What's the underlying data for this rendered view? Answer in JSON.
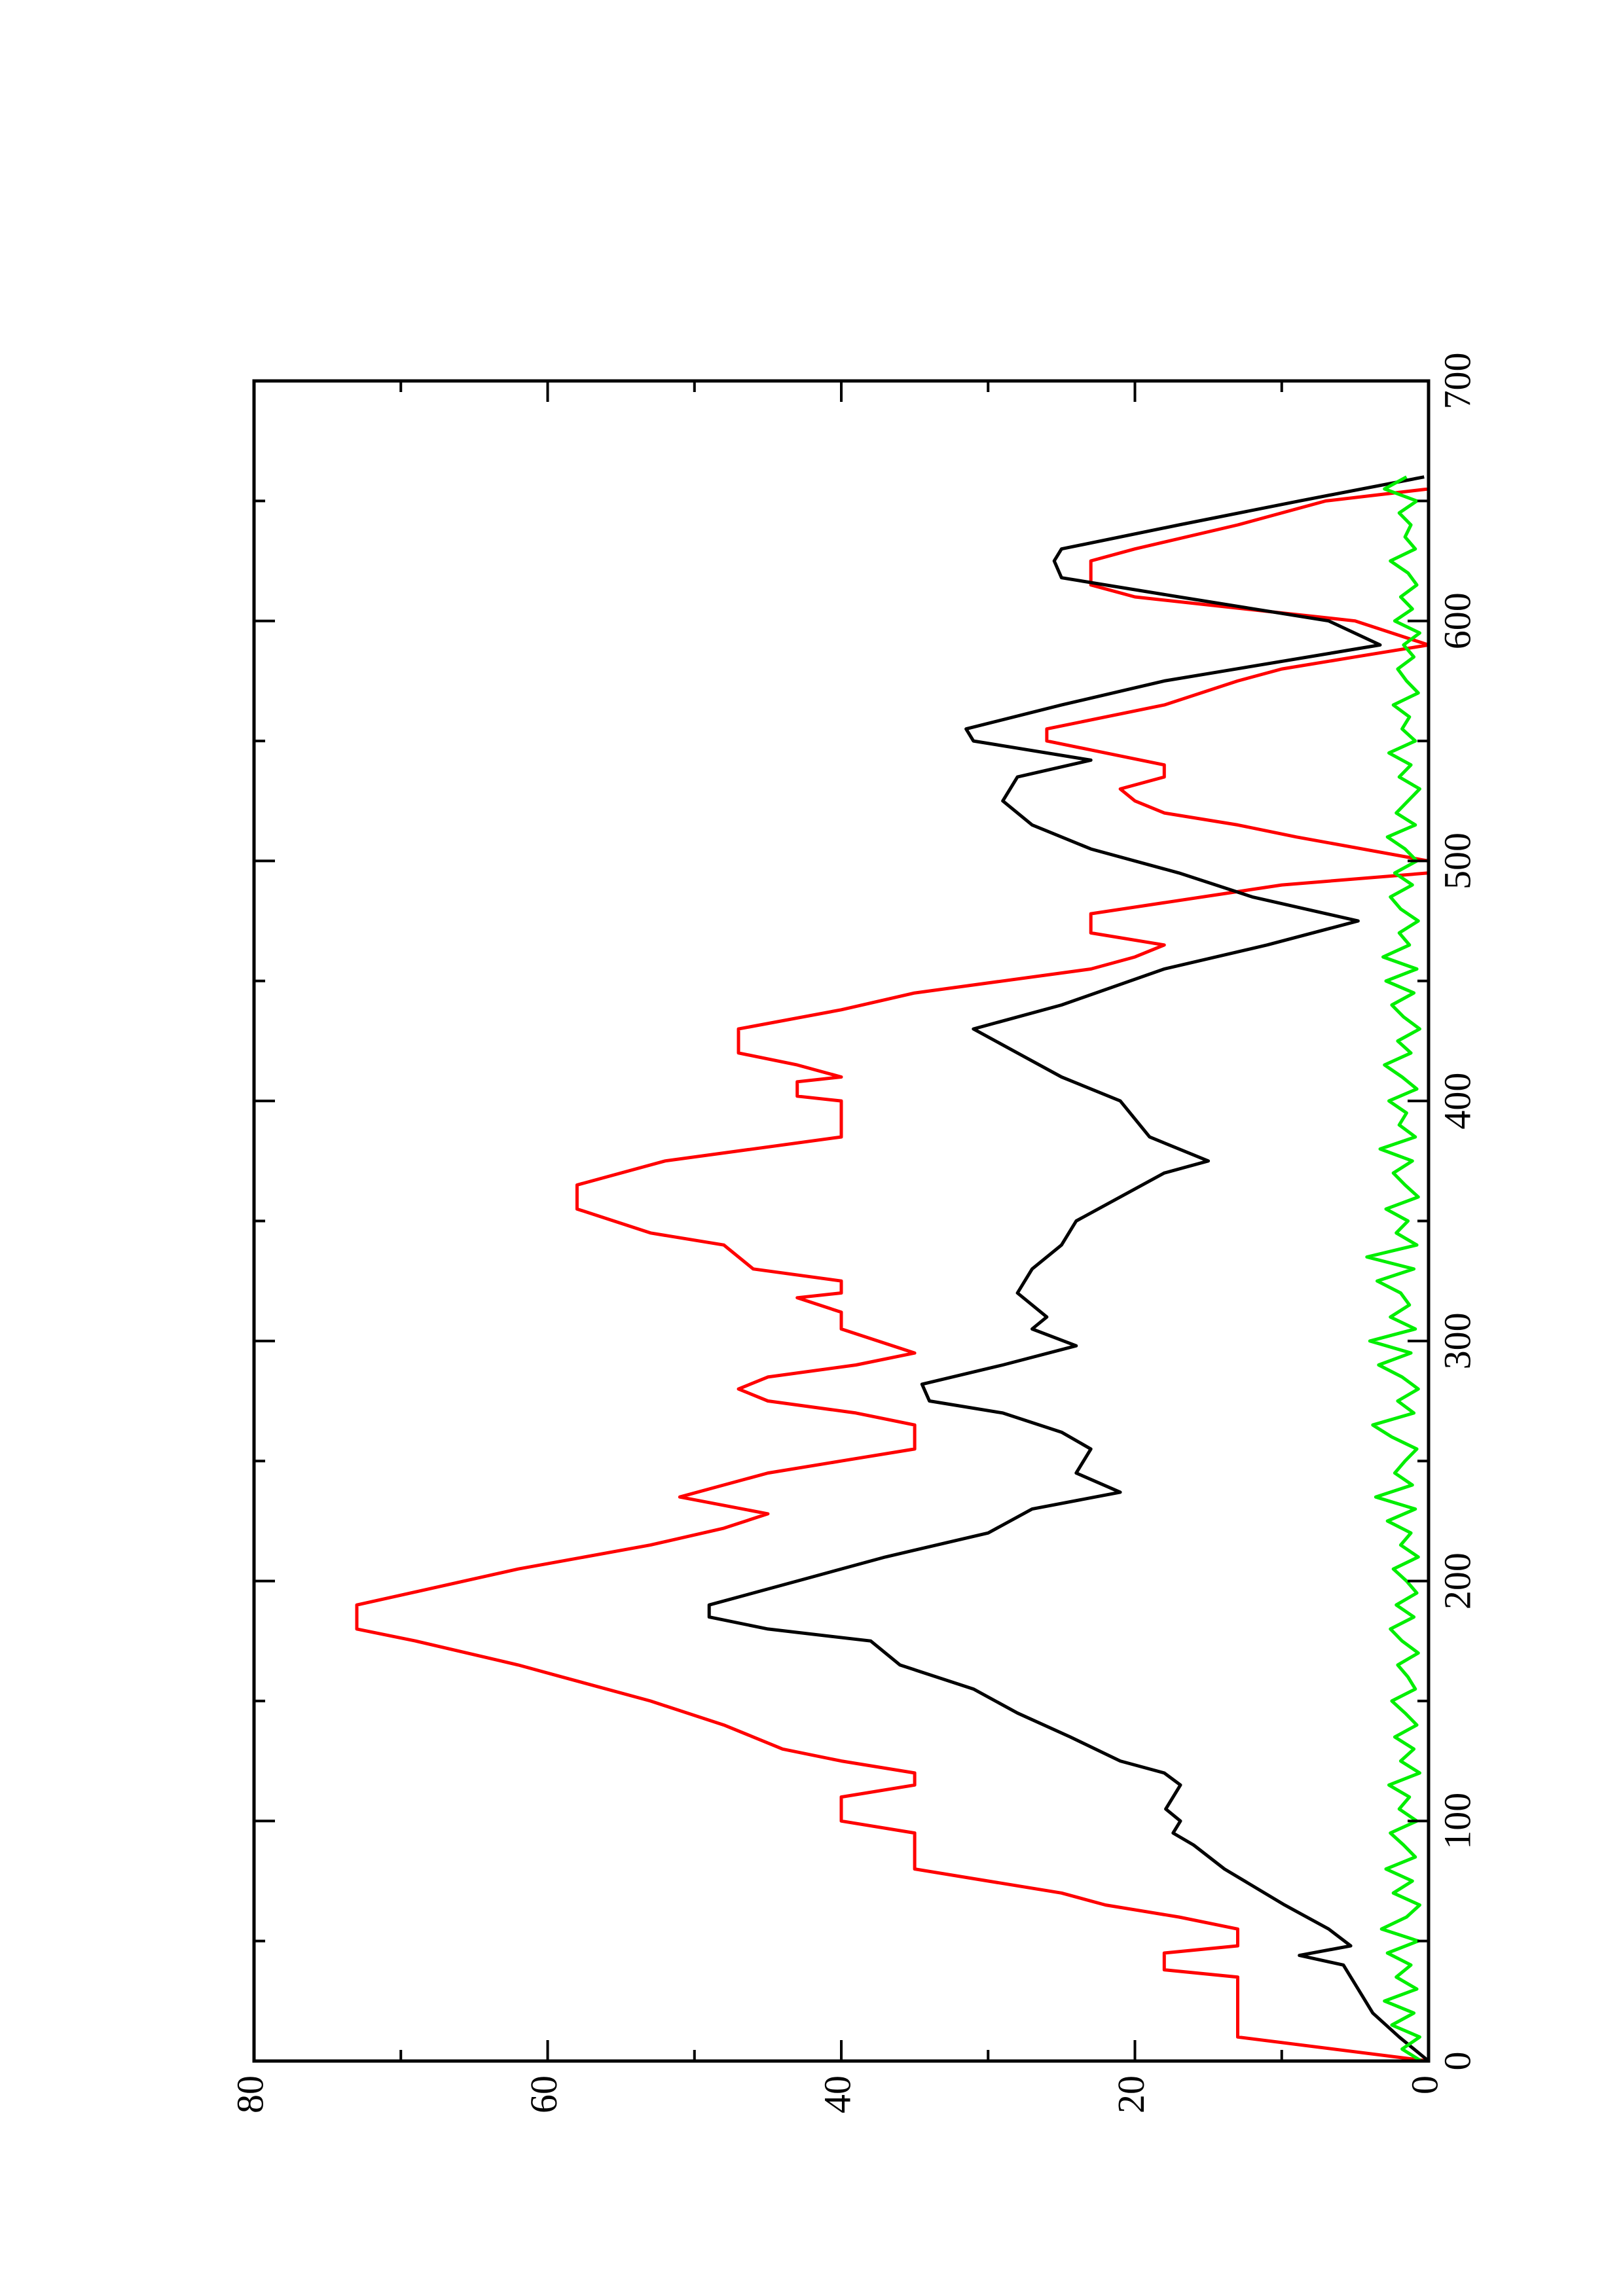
{
  "chart_data": {
    "type": "line",
    "xlim": [
      0,
      700
    ],
    "xticks": [
      0,
      100,
      200,
      300,
      400,
      500,
      600,
      700
    ],
    "ylim": [
      0,
      80
    ],
    "yticks": [
      0,
      20,
      40,
      60,
      80
    ],
    "series": [
      {
        "color": "#ff0000",
        "x": [
          0,
          10,
          35,
          38,
          45,
          48,
          55,
          60,
          65,
          70,
          75,
          80,
          95,
          100,
          110,
          115,
          120,
          125,
          130,
          135,
          140,
          150,
          160,
          165,
          175,
          180,
          190,
          205,
          215,
          222,
          228,
          235,
          240,
          245,
          250,
          255,
          265,
          270,
          275,
          280,
          285,
          290,
          295,
          305,
          312,
          318,
          320,
          325,
          330,
          340,
          345,
          355,
          365,
          375,
          385,
          400,
          402,
          408,
          410,
          415,
          420,
          430,
          438,
          445,
          455,
          460,
          465,
          470,
          478,
          490,
          495,
          500,
          510,
          515,
          520,
          525,
          530,
          535,
          540,
          550,
          555,
          565,
          575,
          580,
          585,
          590,
          600,
          610,
          615,
          625,
          630,
          640,
          650,
          655,
          660
        ],
        "values": [
          0,
          13,
          13,
          18,
          18,
          13,
          13,
          17,
          22,
          25,
          30,
          35,
          35,
          40,
          40,
          35,
          35,
          40,
          44,
          46,
          48,
          53,
          59,
          62,
          69,
          73,
          73,
          62,
          53,
          48,
          45,
          51,
          48,
          45,
          40,
          35,
          35,
          39,
          45,
          47,
          45,
          39,
          35,
          40,
          40,
          43,
          40,
          40,
          46,
          48,
          53,
          58,
          58,
          52,
          40,
          40,
          43,
          43,
          40,
          43,
          47,
          47,
          40,
          35,
          23,
          20,
          18,
          23,
          23,
          10,
          0,
          0,
          9,
          13,
          18,
          20,
          21,
          18,
          18,
          26,
          26,
          18,
          13,
          10,
          5,
          0,
          5,
          20,
          23,
          23,
          20,
          13,
          7,
          0,
          0
        ]
      },
      {
        "color": "#000000",
        "x": [
          0,
          10,
          20,
          30,
          40,
          44,
          48,
          55,
          65,
          80,
          90,
          95,
          100,
          105,
          115,
          120,
          125,
          135,
          145,
          155,
          165,
          175,
          180,
          185,
          190,
          200,
          210,
          220,
          230,
          237,
          245,
          255,
          262,
          270,
          275,
          282,
          290,
          298,
          305,
          310,
          320,
          330,
          340,
          350,
          360,
          370,
          375,
          385,
          400,
          410,
          420,
          430,
          440,
          455,
          465,
          475,
          485,
          495,
          505,
          515,
          525,
          535,
          542,
          550,
          555,
          565,
          575,
          590,
          600,
          610,
          618,
          625,
          630,
          640,
          650,
          660
        ],
        "values": [
          0,
          2,
          3.8,
          4.8,
          5.8,
          8.8,
          5.3,
          6.8,
          9.8,
          13.9,
          16,
          17.4,
          16.9,
          17.9,
          16.9,
          18,
          21,
          24.4,
          28,
          31,
          36,
          38,
          45,
          49,
          49,
          43,
          37,
          30,
          27,
          21,
          24,
          23,
          25,
          29,
          34,
          34.5,
          29,
          24,
          27,
          26,
          28,
          27,
          25,
          24,
          21,
          18,
          15,
          19,
          21,
          25,
          28,
          31,
          25,
          18,
          11,
          4.8,
          12,
          17,
          23,
          27,
          29,
          28,
          23,
          31,
          31.5,
          25,
          18,
          3.3,
          6.8,
          17,
          25,
          25.5,
          25,
          17,
          8.8,
          0.3
        ]
      },
      {
        "color": "#00ee00",
        "x": [
          0,
          5,
          10,
          15,
          20,
          25,
          30,
          35,
          40,
          45,
          50,
          55,
          60,
          65,
          70,
          75,
          80,
          85,
          90,
          95,
          100,
          105,
          110,
          115,
          120,
          125,
          130,
          135,
          140,
          145,
          150,
          155,
          160,
          165,
          170,
          175,
          180,
          185,
          190,
          195,
          200,
          205,
          210,
          215,
          220,
          225,
          230,
          235,
          240,
          245,
          250,
          255,
          260,
          265,
          270,
          275,
          280,
          285,
          290,
          295,
          300,
          305,
          310,
          315,
          320,
          325,
          330,
          335,
          340,
          345,
          350,
          355,
          360,
          365,
          370,
          375,
          380,
          385,
          390,
          395,
          400,
          405,
          410,
          415,
          420,
          425,
          430,
          435,
          440,
          445,
          450,
          455,
          460,
          465,
          470,
          475,
          480,
          485,
          490,
          495,
          500,
          505,
          510,
          515,
          520,
          525,
          530,
          535,
          540,
          545,
          550,
          555,
          560,
          565,
          570,
          575,
          580,
          585,
          590,
          595,
          600,
          605,
          610,
          615,
          620,
          625,
          630,
          635,
          640,
          645,
          650,
          655,
          660
        ],
        "values": [
          0.5,
          1.8,
          0.6,
          2.5,
          1.0,
          3.0,
          0.8,
          2.2,
          1.2,
          2.8,
          0.7,
          3.2,
          1.5,
          0.6,
          2.4,
          1.1,
          2.9,
          0.9,
          1.7,
          2.6,
          0.8,
          2.0,
          1.3,
          2.7,
          0.6,
          1.9,
          1.0,
          2.3,
          0.8,
          1.6,
          2.5,
          0.9,
          1.4,
          2.1,
          0.7,
          1.8,
          2.6,
          1.0,
          2.2,
          0.8,
          1.5,
          2.4,
          0.7,
          1.9,
          1.2,
          2.8,
          0.9,
          3.6,
          1.1,
          2.3,
          1.6,
          0.8,
          2.5,
          3.8,
          1.0,
          2.1,
          0.7,
          1.8,
          3.4,
          1.2,
          4.0,
          0.9,
          2.6,
          1.3,
          1.9,
          3.5,
          1.0,
          4.2,
          0.8,
          2.2,
          1.4,
          2.9,
          0.7,
          1.6,
          2.4,
          1.1,
          3.3,
          0.9,
          2.0,
          1.5,
          2.7,
          0.8,
          1.8,
          3.0,
          1.2,
          2.1,
          0.6,
          1.7,
          2.5,
          1.0,
          2.9,
          0.8,
          3.1,
          1.3,
          2.0,
          0.7,
          1.9,
          2.6,
          1.1,
          2.3,
          0.8,
          1.6,
          2.8,
          0.9,
          2.2,
          1.4,
          0.6,
          2.0,
          1.2,
          2.7,
          0.9,
          1.8,
          1.3,
          2.4,
          0.7,
          1.5,
          2.1,
          1.0,
          1.7,
          0.6,
          2.3,
          1.1,
          1.9,
          0.8,
          1.4,
          2.6,
          0.9,
          1.6,
          1.2,
          2.0,
          0.8,
          3.0,
          1.5
        ]
      }
    ]
  }
}
